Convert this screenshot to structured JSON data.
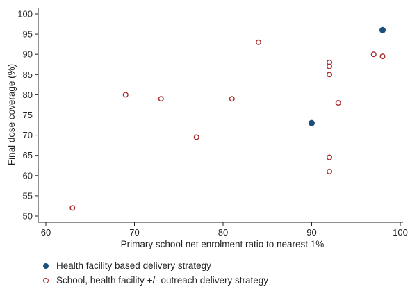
{
  "chart_data": {
    "type": "scatter",
    "xlabel": "Primary school net enrolment ratio to nearest 1%",
    "ylabel": "Final dose coverage (%)",
    "xlim": [
      60,
      100
    ],
    "ylim": [
      50,
      100
    ],
    "x_ticks": [
      60,
      70,
      80,
      90,
      100
    ],
    "y_ticks": [
      50,
      55,
      60,
      65,
      70,
      75,
      80,
      85,
      90,
      95,
      100
    ],
    "grid": false,
    "legend_position": "bottom-left",
    "series": [
      {
        "name": "Health facility based delivery strategy",
        "marker": "filled-circle",
        "color": "#1f4e79",
        "points": [
          {
            "x": 98,
            "y": 96
          },
          {
            "x": 90,
            "y": 73
          }
        ]
      },
      {
        "name": "School, health facility +/- outreach delivery strategy",
        "marker": "hollow-circle",
        "color": "#a52a2a",
        "points": [
          {
            "x": 63,
            "y": 52
          },
          {
            "x": 69,
            "y": 80
          },
          {
            "x": 73,
            "y": 79
          },
          {
            "x": 77,
            "y": 69.5
          },
          {
            "x": 81,
            "y": 79
          },
          {
            "x": 84,
            "y": 93
          },
          {
            "x": 92,
            "y": 88
          },
          {
            "x": 92,
            "y": 87
          },
          {
            "x": 92,
            "y": 85
          },
          {
            "x": 93,
            "y": 78
          },
          {
            "x": 92,
            "y": 64.5
          },
          {
            "x": 92,
            "y": 61
          },
          {
            "x": 97,
            "y": 90
          },
          {
            "x": 98,
            "y": 89.5
          }
        ]
      }
    ]
  }
}
